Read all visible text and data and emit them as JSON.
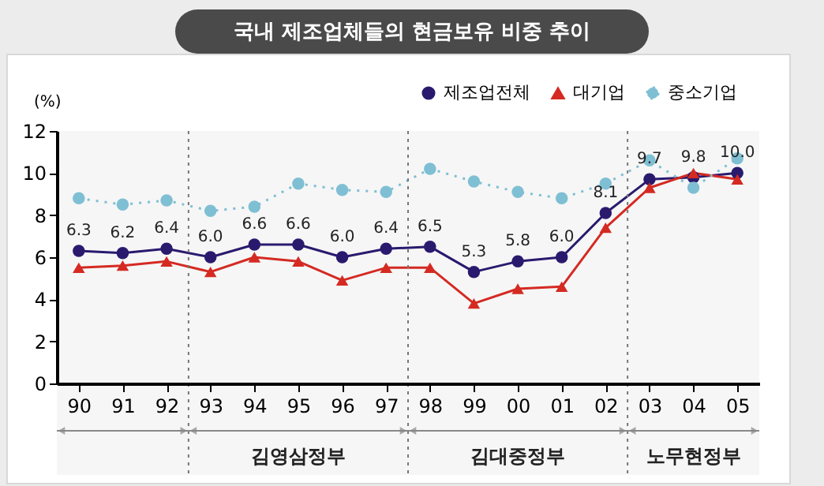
{
  "chart_data": {
    "type": "line",
    "title": "국내 제조업체들의 현금보유 비중 추이",
    "ylabel": "(%)",
    "categories": [
      "90",
      "91",
      "92",
      "93",
      "94",
      "95",
      "96",
      "97",
      "98",
      "99",
      "00",
      "01",
      "02",
      "03",
      "04",
      "05"
    ],
    "series": [
      {
        "name": "제조업전체",
        "color": "#2a1a6e",
        "marker": "circle",
        "line_style": "solid",
        "values": [
          6.3,
          6.2,
          6.4,
          6.0,
          6.6,
          6.6,
          6.0,
          6.4,
          6.5,
          5.3,
          5.8,
          6.0,
          8.1,
          9.7,
          9.8,
          10.0
        ],
        "value_labels": [
          "6.3",
          "6.2",
          "6.4",
          "6.0",
          "6.6",
          "6.6",
          "6.0",
          "6.4",
          "6.5",
          "5.3",
          "5.8",
          "6.0",
          "8.1",
          "9.7",
          "9.8",
          "10.0"
        ]
      },
      {
        "name": "대기업",
        "color": "#d42a22",
        "marker": "triangle",
        "line_style": "solid",
        "values": [
          5.5,
          5.6,
          5.8,
          5.3,
          6.0,
          5.8,
          4.9,
          5.5,
          5.5,
          3.8,
          4.5,
          4.6,
          7.4,
          9.3,
          10.0,
          9.7
        ]
      },
      {
        "name": "중소기업",
        "color": "#7fbfd3",
        "marker": "circle",
        "line_style": "dotted",
        "values": [
          8.8,
          8.5,
          8.7,
          8.2,
          8.4,
          9.5,
          9.2,
          9.1,
          10.2,
          9.6,
          9.1,
          8.8,
          9.5,
          10.6,
          9.3,
          10.7
        ]
      }
    ],
    "ylim": [
      0,
      12
    ],
    "yticks": [
      0,
      2,
      4,
      6,
      8,
      10,
      12
    ],
    "grid": false,
    "legend": "top right",
    "bands": [
      {
        "axis": "x",
        "from": "90",
        "to": "92",
        "color": "#f6f6f6"
      },
      {
        "axis": "x",
        "from": "93",
        "to": "97",
        "label": "김영삼정부",
        "color": "#f6f6f6"
      },
      {
        "axis": "x",
        "from": "98",
        "to": "02",
        "label": "김대중정부",
        "color": "#f6f6f6"
      },
      {
        "axis": "x",
        "from": "03",
        "to": "05",
        "label": "노무현정부",
        "color": "#f6f6f6"
      }
    ]
  }
}
